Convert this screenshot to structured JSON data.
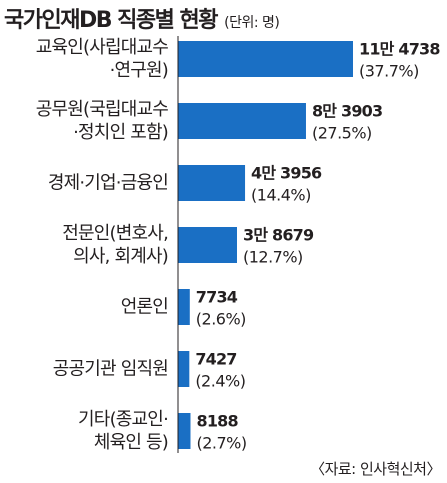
{
  "title": "국가인재DB 직종별 현황",
  "unit": "(단위: 명)",
  "source": "〈자료: 인사혁신처〉",
  "colors": {
    "bar": "#1a6fc4",
    "text": "#231f20",
    "axis": "#231f20"
  },
  "chart_data": {
    "type": "bar",
    "orientation": "horizontal",
    "title": "국가인재DB 직종별 현황",
    "unit": "명",
    "categories": [
      [
        "교육인(사립대교수",
        "·연구원)"
      ],
      [
        "공무원(국립대교수",
        "·정치인 포함)"
      ],
      [
        "경제·기업·금융인"
      ],
      [
        "전문인(변호사,",
        "의사, 회계사)"
      ],
      [
        "언론인"
      ],
      [
        "공공기관 임직원"
      ],
      [
        "기타(종교인·",
        "체육인 등)"
      ]
    ],
    "values": [
      114738,
      83903,
      43956,
      38679,
      7734,
      7427,
      8188
    ],
    "value_labels": [
      "11만 4738",
      "8만 3903",
      "4만 3956",
      "3만 8679",
      "7734",
      "7427",
      "8188"
    ],
    "percent_labels": [
      "(37.7%)",
      "(27.5%)",
      "(14.4%)",
      "(12.7%)",
      "(2.6%)",
      "(2.4%)",
      "(2.7%)"
    ],
    "grid": false,
    "legend": "none"
  }
}
